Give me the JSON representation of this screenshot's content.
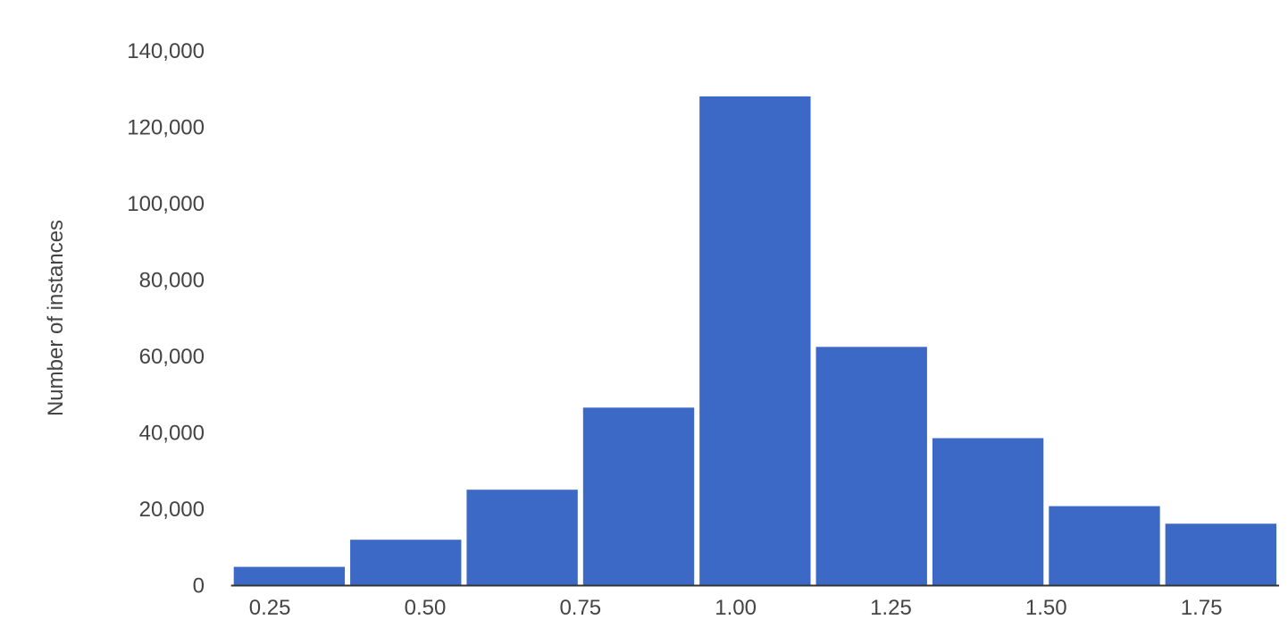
{
  "chart_data": {
    "type": "bar",
    "title": "",
    "xlabel": "",
    "ylabel": "Number of instances",
    "bin_edges": [
      0.1875,
      0.375,
      0.5625,
      0.75,
      0.9375,
      1.125,
      1.3125,
      1.5,
      1.6875,
      1.875
    ],
    "values": [
      4900,
      12000,
      25100,
      46600,
      128100,
      62500,
      38600,
      20800,
      16200
    ],
    "xlim": [
      0.1875,
      1.875
    ],
    "ylim": [
      0,
      140000
    ],
    "x_ticks": [
      "0.25",
      "0.50",
      "0.75",
      "1.00",
      "1.25",
      "1.50",
      "1.75"
    ],
    "x_tick_values": [
      0.25,
      0.5,
      0.75,
      1.0,
      1.25,
      1.5,
      1.75
    ],
    "y_ticks": [
      "0",
      "20,000",
      "40,000",
      "60,000",
      "80,000",
      "100,000",
      "120,000",
      "140,000"
    ],
    "y_tick_values": [
      0,
      20000,
      40000,
      60000,
      80000,
      100000,
      120000,
      140000
    ],
    "grid": false,
    "bar_color": "#3d69c6",
    "axis_color": "#333333"
  }
}
